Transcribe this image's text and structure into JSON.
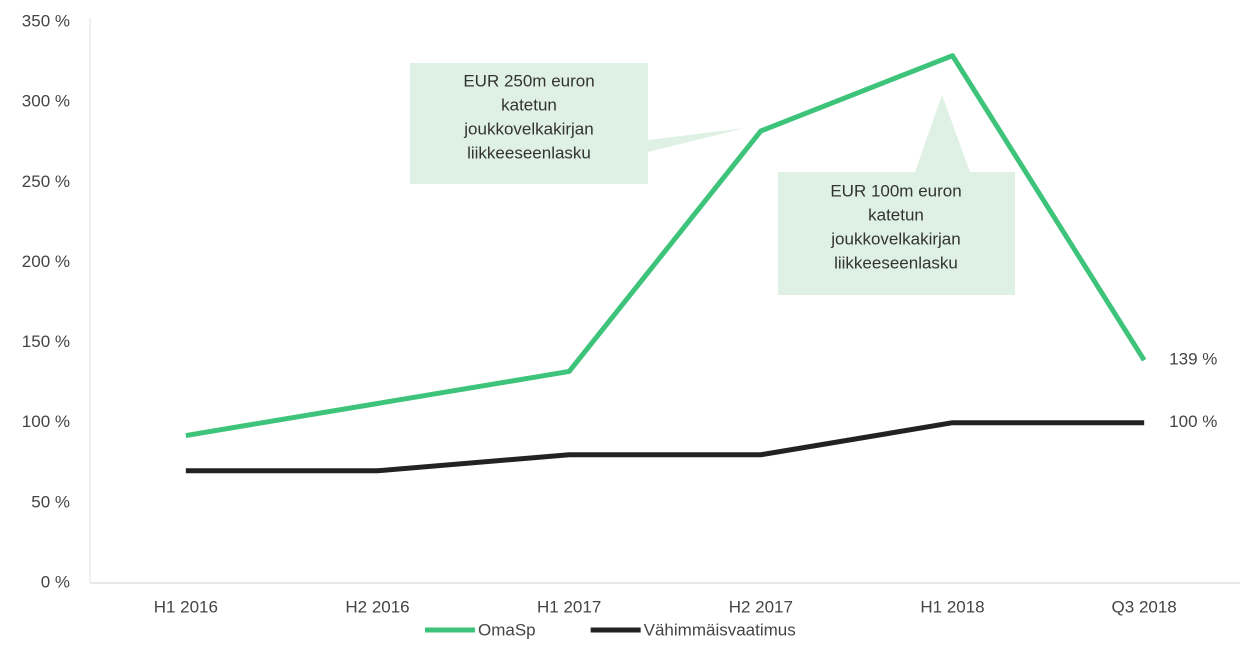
{
  "chart_data": {
    "type": "line",
    "categories": [
      "H1 2016",
      "H2 2016",
      "H1 2017",
      "H2 2017",
      "H1 2018",
      "Q3 2018"
    ],
    "series": [
      {
        "name": "OmaSp",
        "color": "#3ec47a",
        "values": [
          92,
          112,
          132,
          282,
          329,
          139
        ],
        "value_labels": [
          null,
          null,
          null,
          null,
          null,
          "139 %"
        ]
      },
      {
        "name": "Vähimmäisvaatimus",
        "color": "#222222",
        "values": [
          70,
          70,
          80,
          80,
          100,
          100
        ],
        "value_labels": [
          null,
          null,
          null,
          null,
          null,
          "100 %"
        ]
      }
    ],
    "ylim": [
      0,
      350
    ],
    "yticks": [
      {
        "value": 0,
        "label": "0 %"
      },
      {
        "value": 50,
        "label": "50 %"
      },
      {
        "value": 100,
        "label": "100 %"
      },
      {
        "value": 150,
        "label": "150 %"
      },
      {
        "value": 200,
        "label": "200 %"
      },
      {
        "value": 250,
        "label": "250 %"
      },
      {
        "value": 300,
        "label": "300 %"
      },
      {
        "value": 350,
        "label": "350 %"
      }
    ],
    "legend": "bottom",
    "annotations": [
      {
        "lines": [
          "EUR 250m euron",
          "katetun",
          "joukkovelkakirjan",
          "liikkeeseenlasku"
        ]
      },
      {
        "lines": [
          "EUR 100m euron",
          "katetun",
          "joukkovelkakirjan",
          "liikkeeseenlasku"
        ]
      }
    ]
  }
}
